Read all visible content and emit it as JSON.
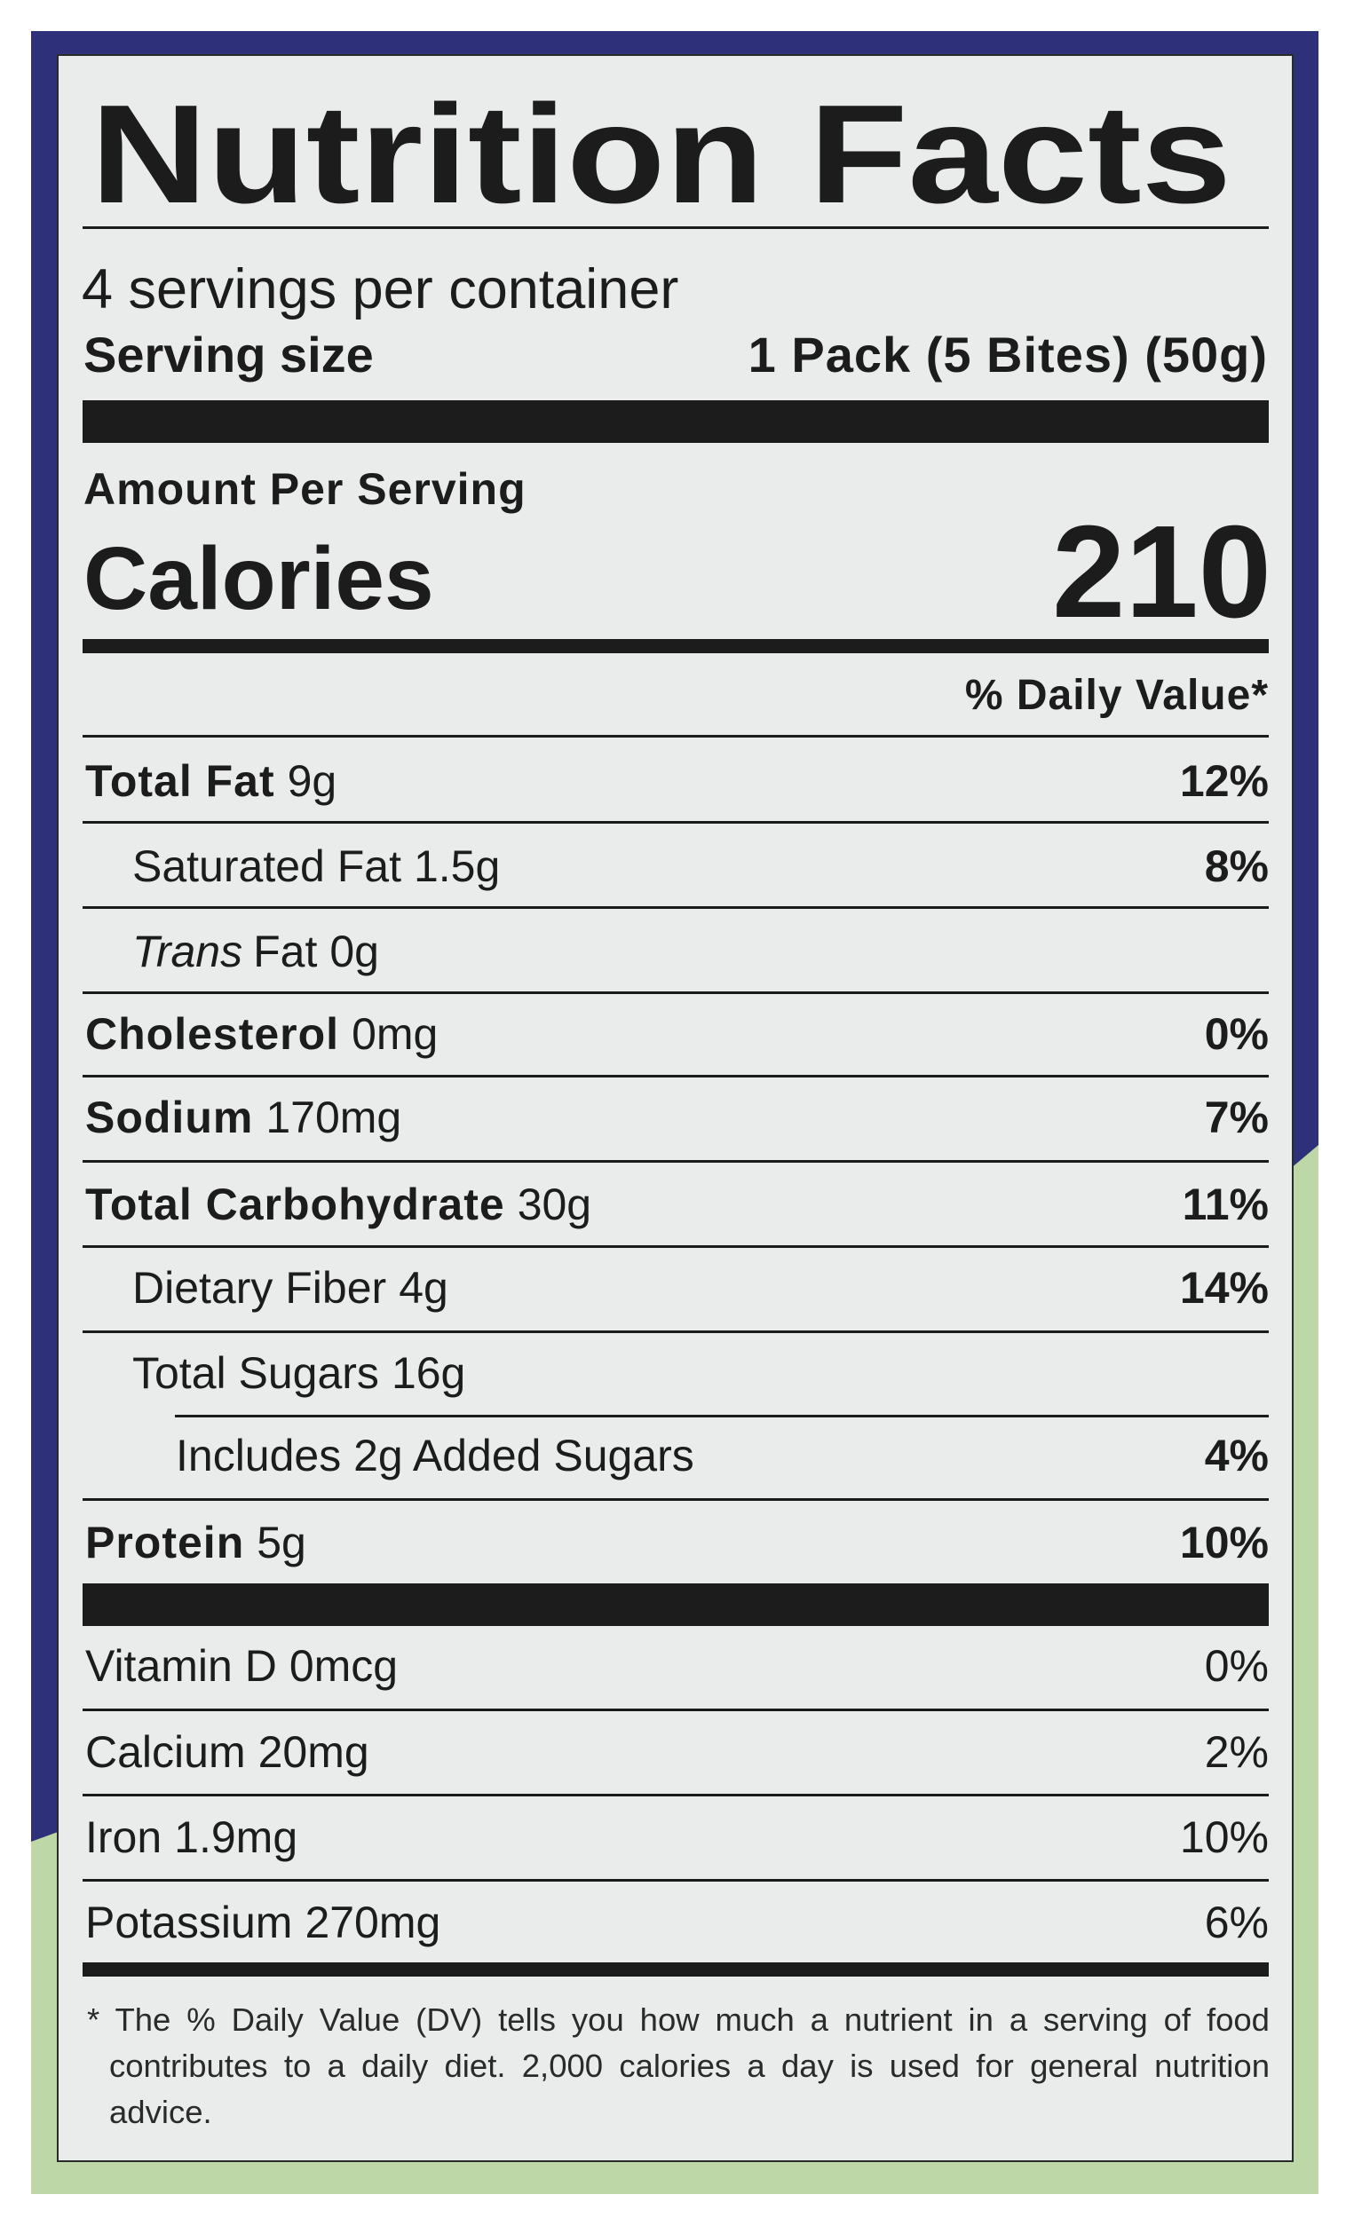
{
  "header": {
    "title": "Nutrition Facts",
    "servings": "4 servings per container",
    "serving_size_label": "Serving size",
    "serving_size": "1 Pack (5 Bites) (50g)"
  },
  "calories": {
    "heading": "Amount Per Serving",
    "label": "Calories",
    "value": "210"
  },
  "daily_value_heading": "% Daily Value*",
  "nutrients": [
    {
      "name": "Total Fat",
      "amount": "9g",
      "dv": "12%"
    },
    {
      "name": "Saturated Fat",
      "amount": "1.5g",
      "dv": "8%"
    },
    {
      "name_italic": "Trans",
      "name": "Fat",
      "amount": "0g"
    },
    {
      "name": "Cholesterol",
      "amount": "0mg",
      "dv": "0%"
    },
    {
      "name": "Sodium",
      "amount": "170mg",
      "dv": "7%"
    },
    {
      "name": "Total Carbohydrate",
      "amount": "30g",
      "dv": "11%"
    },
    {
      "name": "Dietary Fiber",
      "amount": "4g",
      "dv": "14%"
    },
    {
      "name": "Total Sugars",
      "amount": "16g"
    },
    {
      "name": "Includes 2g Added Sugars",
      "dv": "4%"
    },
    {
      "name": "Protein",
      "amount": "5g",
      "dv": "10%"
    }
  ],
  "vitamins": [
    {
      "name": "Vitamin D",
      "amount": "0mcg",
      "dv": "0%"
    },
    {
      "name": "Calcium",
      "amount": "20mg",
      "dv": "2%"
    },
    {
      "name": "Iron",
      "amount": "1.9mg",
      "dv": "10%"
    },
    {
      "name": "Potassium",
      "amount": "270mg",
      "dv": "6%"
    }
  ],
  "footnote": "* The % Daily Value (DV) tells you how much a nutrient in a serving of food contributes to a daily diet. 2,000 calories a day is used for general nutrition advice."
}
